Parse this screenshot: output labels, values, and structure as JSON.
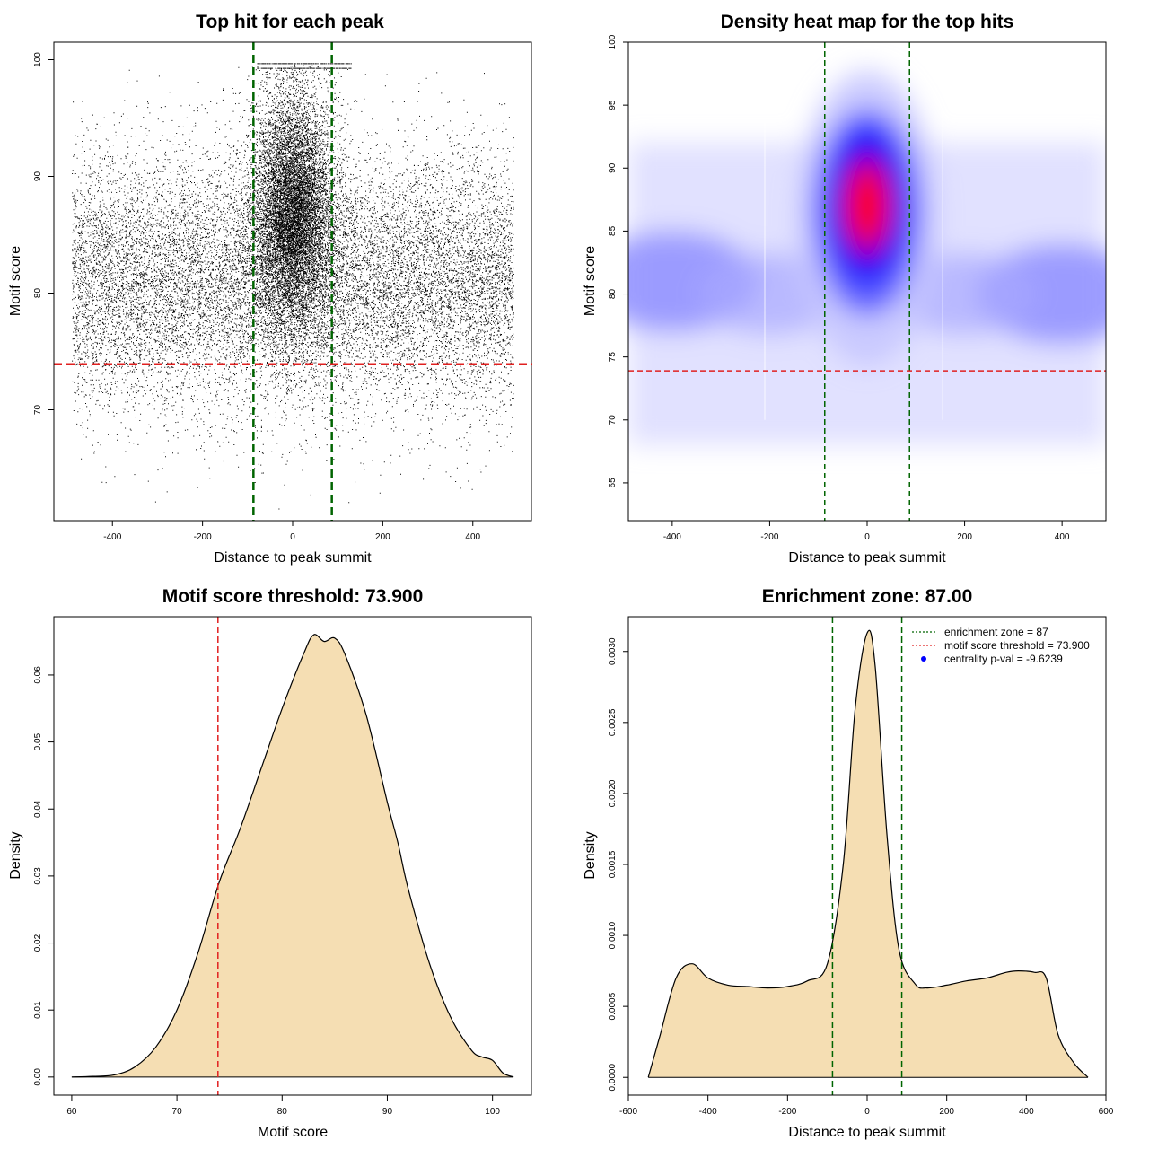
{
  "colors": {
    "background": "#ffffff",
    "axis": "#000000",
    "green_line": "#006400",
    "red_line": "#e02020",
    "density_fill": "#f5deb3",
    "heat_blue": "#0000ff",
    "heat_red": "#ff0000",
    "legend_point": "#0000ff"
  },
  "chart_data": [
    {
      "id": "scatter",
      "type": "scatter",
      "title": "Top hit for each peak",
      "xlabel": "Distance to peak summit",
      "ylabel": "Motif score",
      "xlim": [
        -530,
        530
      ],
      "ylim": [
        60.5,
        101.5
      ],
      "xticks": [
        -400,
        -200,
        0,
        200,
        400
      ],
      "yticks": [
        70,
        80,
        90,
        100
      ],
      "vlines": [
        -87,
        87
      ],
      "hline": 73.9,
      "grid": false,
      "point_distribution": {
        "background": {
          "x_range": [
            -490,
            490
          ],
          "y_mean": 81,
          "y_sd": 5.5
        },
        "central_cluster": {
          "x_mean": 0,
          "x_sd": 45,
          "y_mean": 87,
          "y_sd": 5
        },
        "top_band": {
          "x_range": [
            -80,
            130
          ],
          "y_values": [
            99.3,
            99.5,
            99.7
          ]
        }
      }
    },
    {
      "id": "heatmap",
      "type": "heatmap",
      "title": "Density heat map for the top hits",
      "xlabel": "Distance to peak summit",
      "ylabel": "Motif score",
      "xlim": [
        -490,
        490
      ],
      "ylim": [
        62,
        100
      ],
      "xticks": [
        -400,
        -200,
        0,
        200,
        400
      ],
      "yticks": [
        65,
        70,
        75,
        80,
        85,
        90,
        95,
        100
      ],
      "vlines": [
        -87,
        87
      ],
      "hline": 73.9,
      "grid": false,
      "density_peak": {
        "x": 0,
        "y": 87
      }
    },
    {
      "id": "score-density",
      "type": "area",
      "title": "Motif score threshold: 73.900",
      "xlabel": "Motif score",
      "ylabel": "Density",
      "xlim": [
        58.3,
        103.7
      ],
      "ylim": [
        -0.0027,
        0.0687
      ],
      "xticks": [
        60,
        70,
        80,
        90,
        100
      ],
      "yticks": [
        0.0,
        0.01,
        0.02,
        0.03,
        0.04,
        0.05,
        0.06
      ],
      "ytick_labels": [
        "0.00",
        "0.01",
        "0.02",
        "0.03",
        "0.04",
        "0.05",
        "0.06"
      ],
      "vline": 73.9,
      "grid": false,
      "x": [
        60,
        62,
        64,
        66,
        68,
        70,
        72,
        74,
        76,
        78,
        80,
        82,
        83,
        84,
        85,
        86,
        88,
        90,
        91,
        92,
        94,
        96,
        98,
        99,
        100,
        101,
        102
      ],
      "y": [
        0.0,
        0.0001,
        0.0003,
        0.0015,
        0.0045,
        0.01,
        0.0185,
        0.029,
        0.037,
        0.046,
        0.055,
        0.063,
        0.066,
        0.065,
        0.0655,
        0.063,
        0.054,
        0.041,
        0.035,
        0.028,
        0.017,
        0.009,
        0.004,
        0.003,
        0.0025,
        0.0006,
        0.0
      ]
    },
    {
      "id": "distance-density",
      "type": "area",
      "title": "Enrichment zone: 87.00",
      "xlabel": "Distance to peak summit",
      "ylabel": "Density",
      "xlim": [
        -600,
        600
      ],
      "ylim": [
        -0.000125,
        0.003245
      ],
      "xticks": [
        -600,
        -400,
        -200,
        0,
        200,
        400,
        600
      ],
      "yticks": [
        0.0,
        0.0005,
        0.001,
        0.0015,
        0.002,
        0.0025,
        0.003
      ],
      "ytick_labels": [
        "0.0000",
        "0.0005",
        "0.0010",
        "0.0015",
        "0.0020",
        "0.0025",
        "0.0030"
      ],
      "vlines": [
        -87,
        87
      ],
      "grid": false,
      "legend_position": "top-right",
      "x": [
        -550,
        -520,
        -480,
        -440,
        -400,
        -350,
        -300,
        -250,
        -200,
        -150,
        -100,
        -60,
        -30,
        0,
        20,
        50,
        80,
        120,
        150,
        200,
        250,
        300,
        350,
        380,
        420,
        450,
        480,
        520,
        555
      ],
      "y": [
        0.0,
        0.0003,
        0.0007,
        0.0008,
        0.0007,
        0.00065,
        0.00064,
        0.00063,
        0.00064,
        0.00068,
        0.0008,
        0.0015,
        0.0026,
        0.00313,
        0.0029,
        0.0017,
        0.0009,
        0.00066,
        0.00063,
        0.00065,
        0.00068,
        0.0007,
        0.00074,
        0.00075,
        0.00074,
        0.0007,
        0.0003,
        0.0001,
        0.0
      ],
      "legend": [
        {
          "label": "enrichment zone = 87",
          "style": "green-dotted"
        },
        {
          "label": "motif score threshold = 73.900",
          "style": "red-dotted"
        },
        {
          "label": "centrality p-val = -9.6239",
          "style": "blue-point"
        }
      ]
    }
  ]
}
